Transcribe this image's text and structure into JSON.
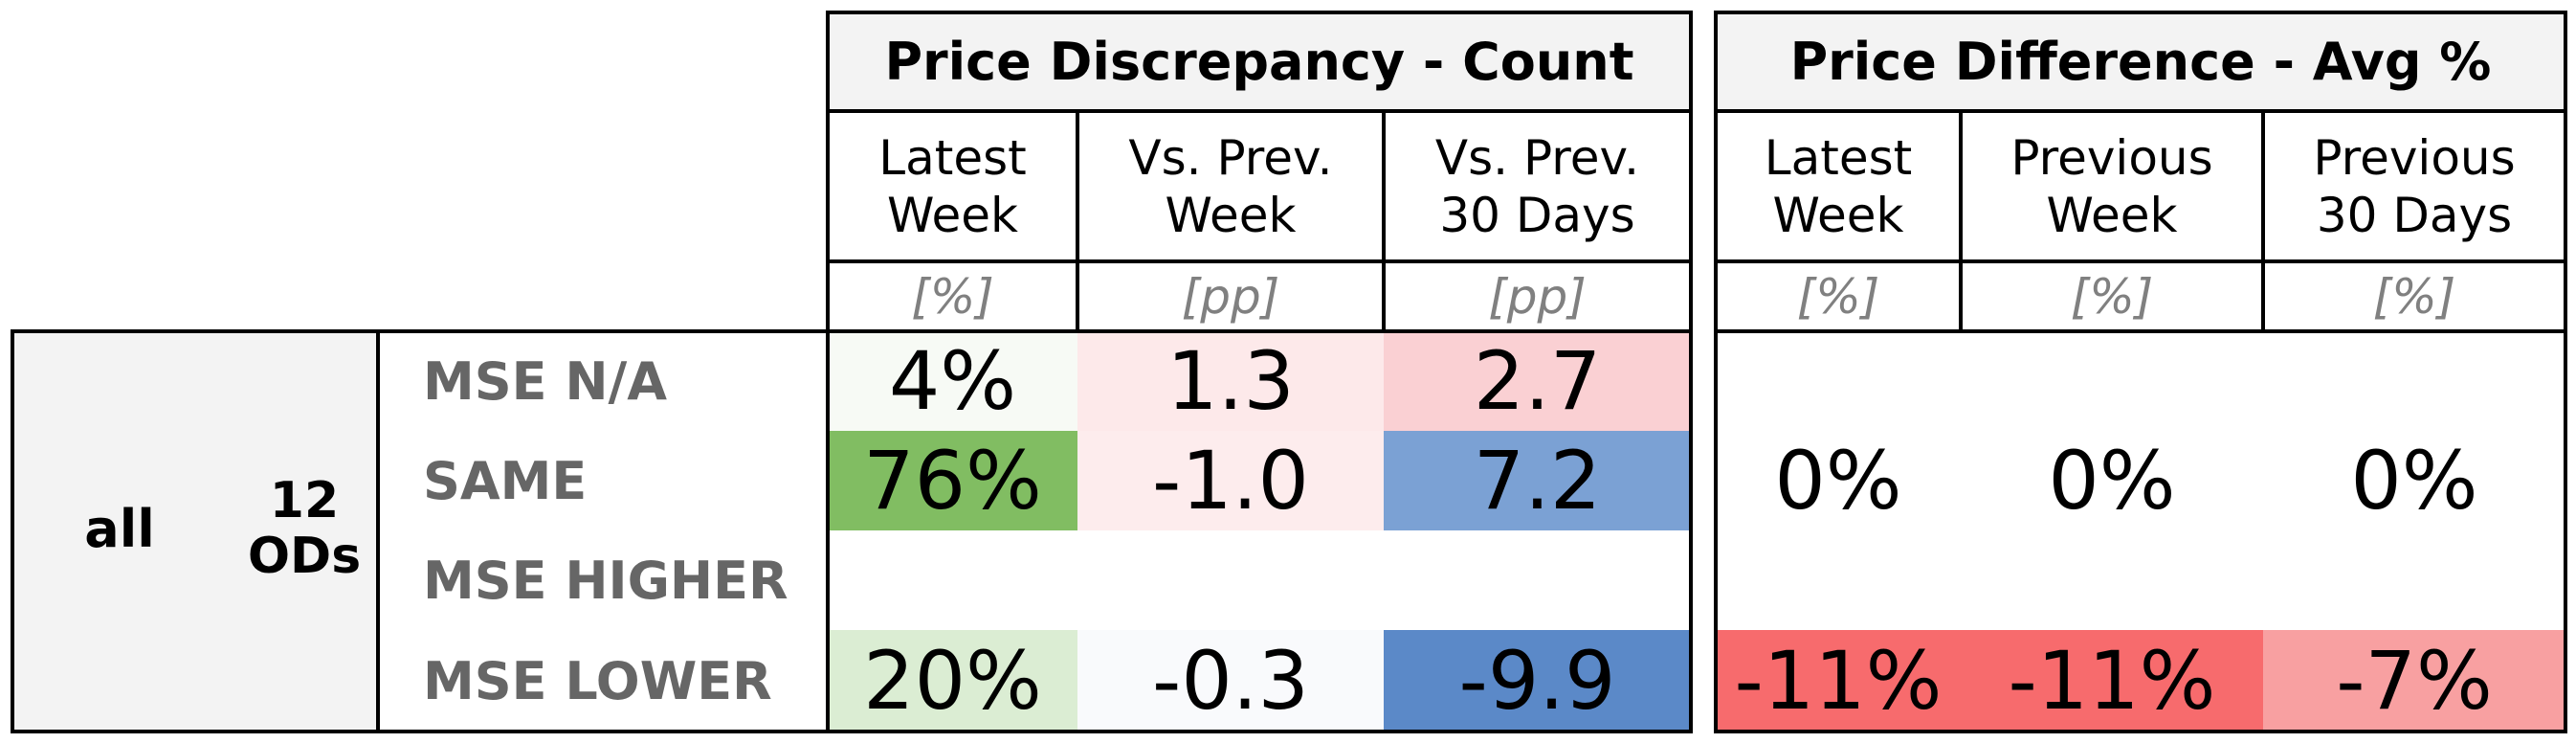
{
  "chart_data": {
    "type": "table",
    "groups": [
      {
        "title": "Price Discrepancy - Count",
        "columns": [
          {
            "label": "Latest\nWeek",
            "unit": "[%]"
          },
          {
            "label": "Vs. Prev.\nWeek",
            "unit": "[pp]"
          },
          {
            "label": "Vs. Prev.\n30 Days",
            "unit": "[pp]"
          }
        ]
      },
      {
        "title": "Price Difference - Avg %",
        "columns": [
          {
            "label": "Latest\nWeek",
            "unit": "[%]"
          },
          {
            "label": "Previous\nWeek",
            "unit": "[%]"
          },
          {
            "label": "Previous\n30 Days",
            "unit": "[%]"
          }
        ]
      }
    ],
    "segment": {
      "name": "all",
      "count_label": "12\nODs"
    },
    "rows": [
      "MSE N/A",
      "SAME",
      "MSE HIGHER",
      "MSE LOWER"
    ],
    "count_values": [
      [
        "4%",
        "1.3",
        "2.7"
      ],
      [
        "76%",
        "-1.0",
        "7.2"
      ],
      [
        "",
        "",
        ""
      ],
      [
        "20%",
        "-0.3",
        "-9.9"
      ]
    ],
    "count_colors": [
      [
        "#f7faf5",
        "#fde9ea",
        "#fad0d3"
      ],
      [
        "#81bd62",
        "#fdeced",
        "#7ba1d4"
      ],
      [
        "#ffffff",
        "#ffffff",
        "#ffffff"
      ],
      [
        "#dbedd3",
        "#f9fafc",
        "#5b89c8"
      ]
    ],
    "diff_values": [
      [
        "0%",
        "0%",
        "0%"
      ],
      [
        "-11%",
        "-11%",
        "-7%"
      ]
    ],
    "diff_colors": [
      [
        "#ffffff",
        "#ffffff",
        "#ffffff"
      ],
      [
        "#f76b6d",
        "#f76b6d",
        "#f8a0a1"
      ]
    ]
  }
}
